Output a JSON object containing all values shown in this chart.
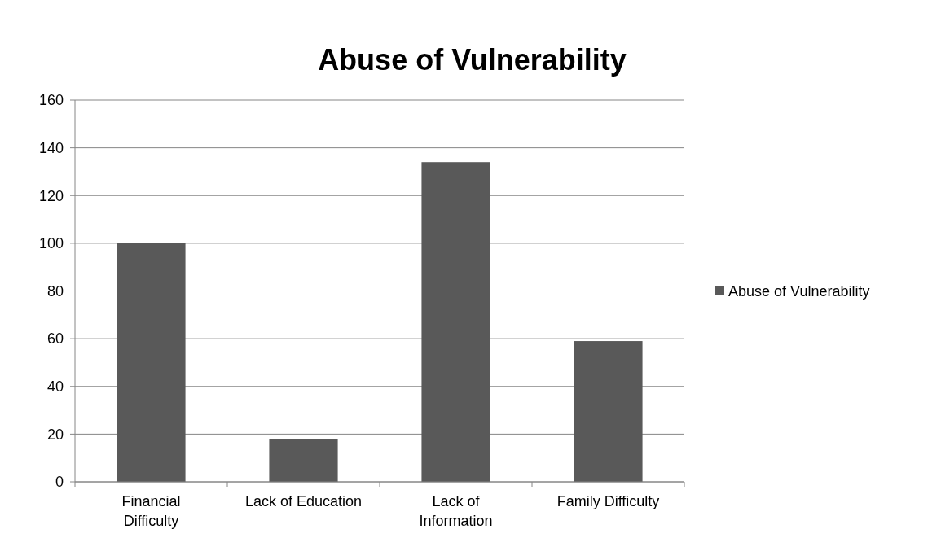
{
  "chart_data": {
    "type": "bar",
    "title": "Abuse of Vulnerability",
    "categories": [
      "Financial Difficulty",
      "Lack of Education",
      "Lack of Information",
      "Family Difficulty"
    ],
    "series": [
      {
        "name": "Abuse of Vulnerability",
        "color": "#595959",
        "values": [
          100,
          18,
          134,
          59
        ]
      }
    ],
    "ylim": [
      0,
      160
    ],
    "yticks": [
      0,
      20,
      40,
      60,
      80,
      100,
      120,
      140,
      160
    ],
    "grid": "y",
    "legend": "right"
  }
}
